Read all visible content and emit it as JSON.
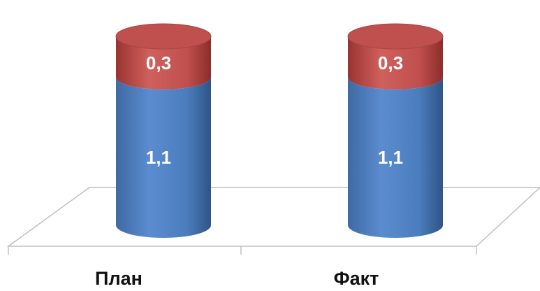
{
  "chart_data": {
    "type": "bar",
    "style": "3d-cylinder-stacked",
    "categories": [
      "План",
      "Факт"
    ],
    "series": [
      {
        "values": [
          1.1,
          1.1
        ],
        "labels": [
          "1,1",
          "1,1"
        ],
        "color": "#4f81bd"
      },
      {
        "values": [
          0.3,
          0.3
        ],
        "labels": [
          "0,3",
          "0,3"
        ],
        "color": "#c0504d"
      }
    ],
    "title": "",
    "xlabel": "",
    "ylabel": "",
    "ylim": [
      0,
      1.4
    ],
    "grid": false,
    "legend": "none"
  }
}
